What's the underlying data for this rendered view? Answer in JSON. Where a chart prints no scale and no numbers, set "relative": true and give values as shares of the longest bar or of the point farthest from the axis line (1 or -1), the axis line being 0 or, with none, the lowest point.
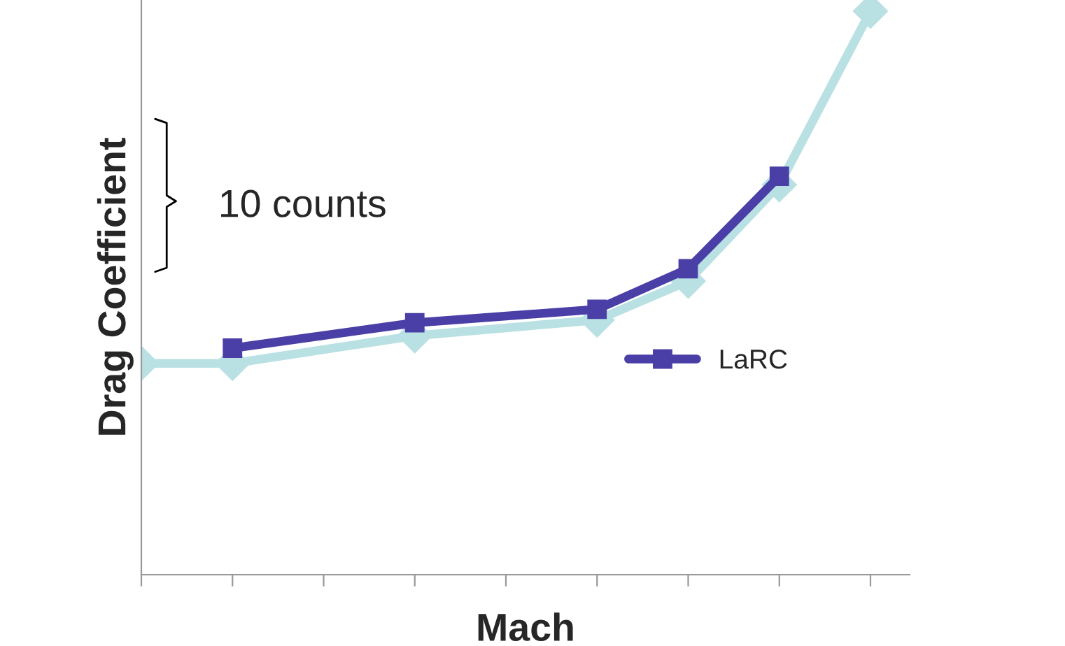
{
  "chart_data": {
    "type": "line",
    "relative": true,
    "xlabel": "Mach",
    "ylabel": "Drag Coefficient",
    "categories": [
      null,
      null,
      null,
      null,
      null,
      null,
      null,
      null,
      null
    ],
    "series": [
      {
        "color": "#b9e1e3",
        "marker": "diamond",
        "values": [
          0.375,
          0.375,
          null,
          0.424,
          null,
          0.452,
          0.521,
          0.692,
          1.0
        ]
      },
      {
        "name": "LaRC",
        "color": "#4a3fa6",
        "marker": "square",
        "values": [
          null,
          0.402,
          null,
          0.447,
          null,
          0.471,
          0.543,
          0.707,
          null
        ]
      }
    ],
    "annotations": [
      "10 counts"
    ],
    "legend": "bottom right",
    "grid": false
  }
}
